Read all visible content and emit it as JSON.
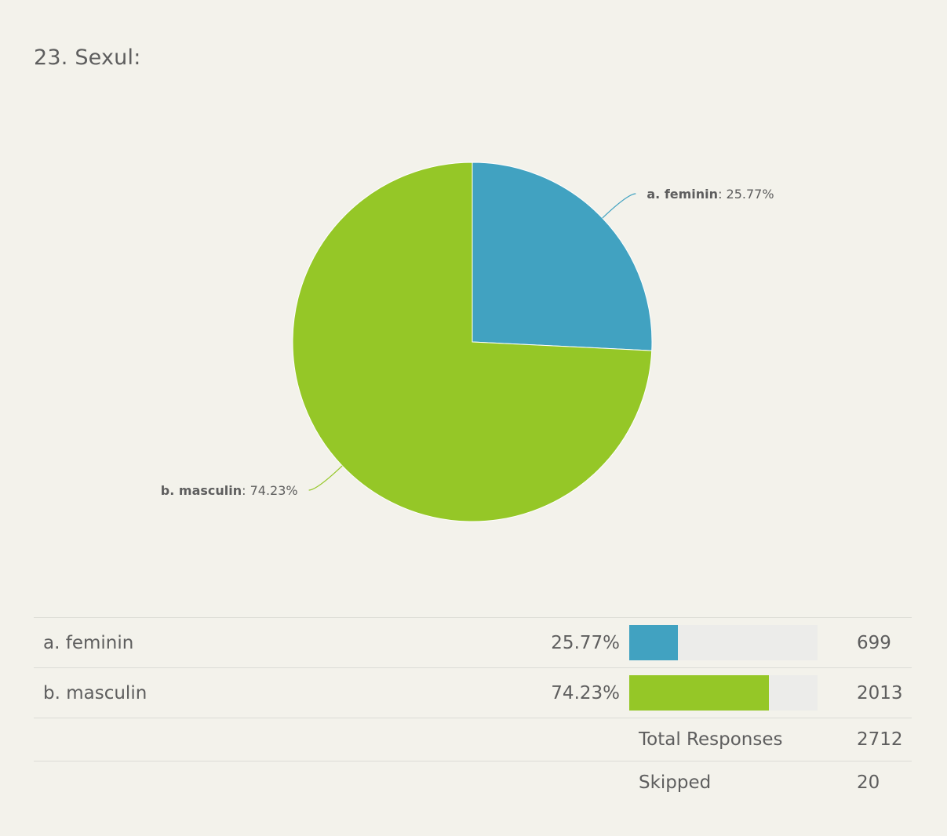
{
  "question": {
    "title": "23. Sexul:"
  },
  "chart_data": {
    "type": "pie",
    "title": "23. Sexul:",
    "categories": [
      "a. feminin",
      "b. masculin"
    ],
    "values": [
      25.77,
      74.23
    ],
    "value_unit": "%",
    "colors": [
      "#41a2c1",
      "#95c727"
    ],
    "start_angle": "12 o'clock",
    "direction": "clockwise",
    "labels": [
      {
        "name": "a. feminin",
        "value_text": ": 25.77%"
      },
      {
        "name": "b. masculin",
        "value_text": ": 74.23%"
      }
    ]
  },
  "table": {
    "rows": [
      {
        "label": "a. feminin",
        "percent": "25.77%",
        "fraction": 0.2577,
        "color": "#41a2c1",
        "count": "699"
      },
      {
        "label": "b. masculin",
        "percent": "74.23%",
        "fraction": 0.7423,
        "color": "#95c727",
        "count": "2013"
      }
    ],
    "total_label": "Total Responses",
    "total_value": "2712",
    "skipped_label": "Skipped",
    "skipped_value": "20"
  }
}
